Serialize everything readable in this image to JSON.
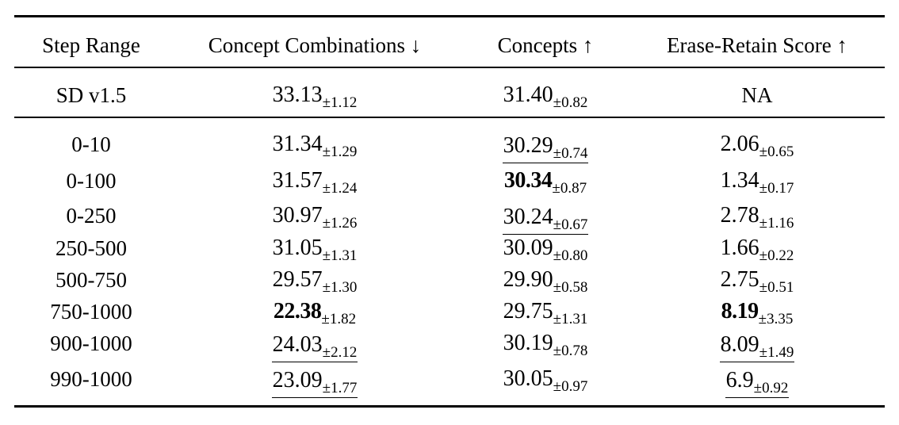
{
  "table": {
    "header": [
      "Step Range",
      "Concept Combinations ↓",
      "Concepts ↑",
      "Erase-Retain Score ↑"
    ],
    "rows": [
      {
        "label": "SD v1.5",
        "cells": [
          {
            "mean": "33.13",
            "std": "±1.12"
          },
          {
            "mean": "31.40",
            "std": "±0.82"
          },
          "NA"
        ]
      },
      {
        "label": "0-10",
        "cells": [
          {
            "mean": "31.34",
            "std": "±1.29"
          },
          {
            "mean": "30.29",
            "std": "±0.74"
          },
          {
            "mean": "2.06",
            "std": "±0.65"
          }
        ]
      },
      {
        "label": "0-100",
        "cells": [
          {
            "mean": "31.57",
            "std": "±1.24"
          },
          {
            "mean": "30.34",
            "std": "±0.87"
          },
          {
            "mean": "1.34",
            "std": "±0.17"
          }
        ]
      },
      {
        "label": "0-250",
        "cells": [
          {
            "mean": "30.97",
            "std": "±1.26"
          },
          {
            "mean": "30.24",
            "std": "±0.67"
          },
          {
            "mean": "2.78",
            "std": "±1.16"
          }
        ]
      },
      {
        "label": "250-500",
        "cells": [
          {
            "mean": "31.05",
            "std": "±1.31"
          },
          {
            "mean": "30.09",
            "std": "±0.80"
          },
          {
            "mean": "1.66",
            "std": "±0.22"
          }
        ]
      },
      {
        "label": "500-750",
        "cells": [
          {
            "mean": "29.57",
            "std": "±1.30"
          },
          {
            "mean": "29.90",
            "std": "±0.58"
          },
          {
            "mean": "2.75",
            "std": "±0.51"
          }
        ]
      },
      {
        "label": "750-1000",
        "cells": [
          {
            "mean": "22.38",
            "std": "±1.82"
          },
          {
            "mean": "29.75",
            "std": "±1.31"
          },
          {
            "mean": "8.19",
            "std": "±3.35"
          }
        ]
      },
      {
        "label": "900-1000",
        "cells": [
          {
            "mean": "24.03",
            "std": "±2.12"
          },
          {
            "mean": "30.19",
            "std": "±0.78"
          },
          {
            "mean": "8.09",
            "std": "±1.49"
          }
        ]
      },
      {
        "label": "990-1000",
        "cells": [
          {
            "mean": "23.09",
            "std": "±1.77"
          },
          {
            "mean": "30.05",
            "std": "±0.97"
          },
          {
            "mean": "6.9",
            "std": "±0.92"
          }
        ]
      }
    ]
  }
}
